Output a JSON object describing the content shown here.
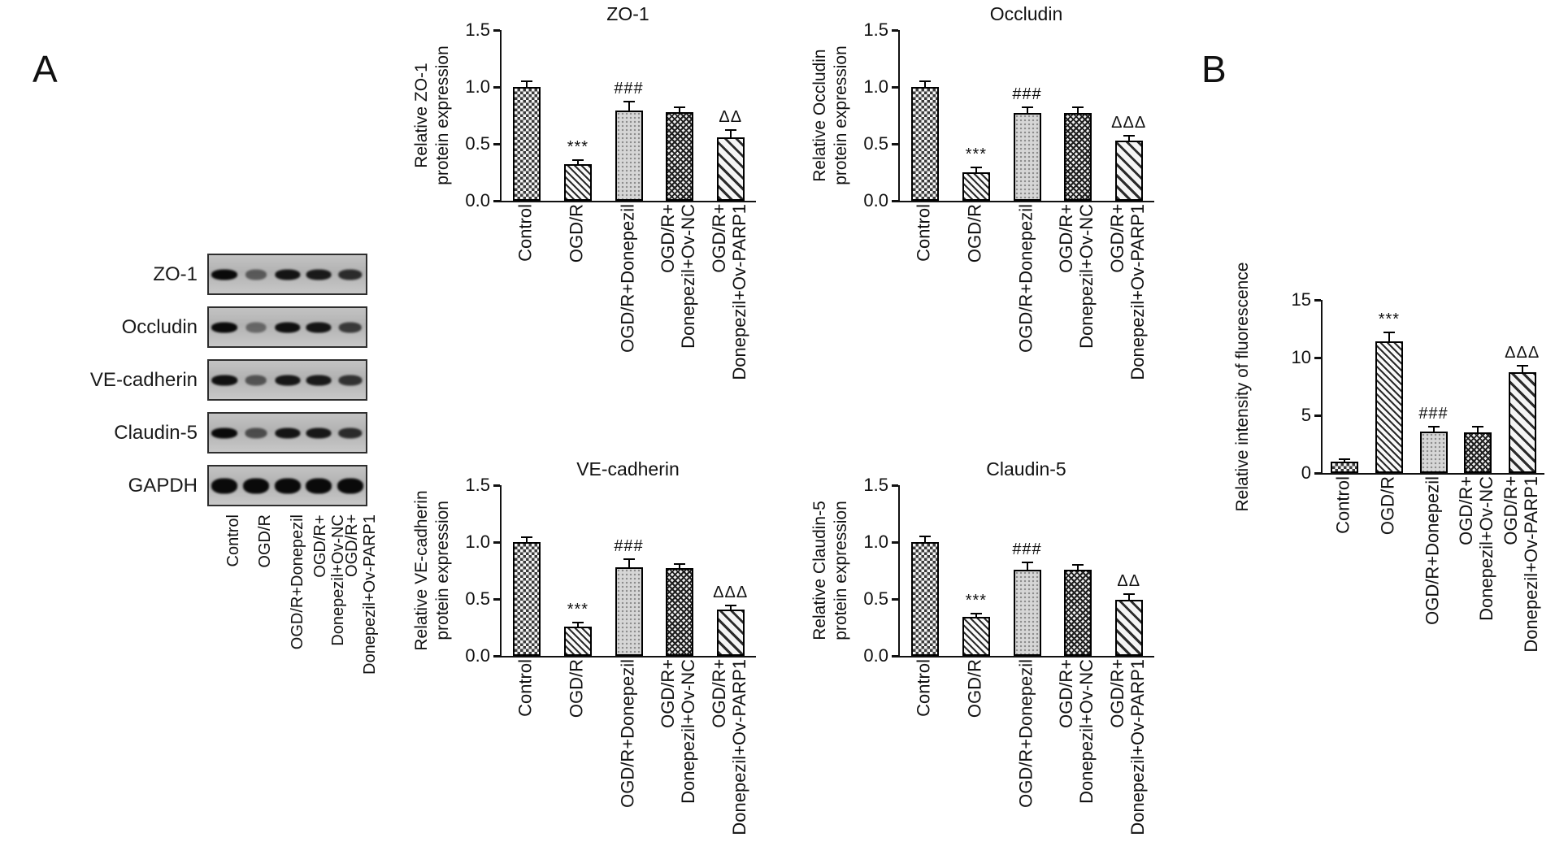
{
  "figure": {
    "panel_a_label": "A",
    "panel_b_label": "B",
    "background": "#ffffff",
    "ink": "#111111"
  },
  "bar_patterns": [
    {
      "category": "Control",
      "pattern": "checkerboard"
    },
    {
      "category": "OGD/R",
      "pattern": "fine-diagonal-hatch"
    },
    {
      "category": "OGD/R+Donepezil",
      "pattern": "light-gray-dotted"
    },
    {
      "category": "OGD/R+Donepezil+Ov-NC",
      "pattern": "dense-crosshatch"
    },
    {
      "category": "OGD/R+Donepezil+Ov-PARP1",
      "pattern": "diagonal-hatch"
    }
  ],
  "blot": {
    "rows": [
      {
        "label": "ZO-1",
        "band_intensities": [
          1.0,
          0.4,
          0.92,
          0.88,
          0.75
        ]
      },
      {
        "label": "Occludin",
        "band_intensities": [
          1.0,
          0.3,
          0.95,
          0.92,
          0.65
        ]
      },
      {
        "label": "VE-cadherin",
        "band_intensities": [
          0.95,
          0.45,
          0.9,
          0.88,
          0.7
        ]
      },
      {
        "label": "Claudin-5",
        "band_intensities": [
          1.0,
          0.5,
          0.92,
          0.9,
          0.75
        ]
      },
      {
        "label": "GAPDH",
        "band_intensities": [
          1.0,
          1.0,
          1.0,
          1.0,
          1.0
        ]
      }
    ],
    "lane_labels": [
      [
        "Control"
      ],
      [
        "OGD/R"
      ],
      [
        "OGD/R+Donepezil"
      ],
      [
        "OGD/R+",
        "Donepezil+Ov-NC"
      ],
      [
        "OGD/R+",
        "Donepezil+Ov-PARP1"
      ]
    ]
  },
  "chart_data": [
    {
      "id": "zo1",
      "panel": "A",
      "type": "bar",
      "title": "ZO-1",
      "ylabel_lines": [
        "Relative ZO-1",
        "protein expression"
      ],
      "ylim": [
        0,
        1.5
      ],
      "yticks": [
        "0.0",
        "0.5",
        "1.0",
        "1.5"
      ],
      "categories": [
        [
          "Control"
        ],
        [
          "OGD/R"
        ],
        [
          "OGD/R+Donepezil"
        ],
        [
          "OGD/R+",
          "Donepezil+Ov-NC"
        ],
        [
          "OGD/R+",
          "Donepezil+Ov-PARP1"
        ]
      ],
      "values": [
        1.0,
        0.32,
        0.79,
        0.78,
        0.56
      ],
      "errors": [
        0.05,
        0.04,
        0.08,
        0.04,
        0.06
      ],
      "annotations": [
        "",
        "***",
        "###",
        "",
        "ΔΔ"
      ]
    },
    {
      "id": "occludin",
      "panel": "A",
      "type": "bar",
      "title": "Occludin",
      "ylabel_lines": [
        "Relative Occludin",
        "protein expression"
      ],
      "ylim": [
        0,
        1.5
      ],
      "yticks": [
        "0.0",
        "0.5",
        "1.0",
        "1.5"
      ],
      "categories": [
        [
          "Control"
        ],
        [
          "OGD/R"
        ],
        [
          "OGD/R+Donepezil"
        ],
        [
          "OGD/R+",
          "Donepezil+Ov-NC"
        ],
        [
          "OGD/R+",
          "Donepezil+Ov-PARP1"
        ]
      ],
      "values": [
        1.0,
        0.25,
        0.77,
        0.77,
        0.53
      ],
      "errors": [
        0.05,
        0.04,
        0.05,
        0.05,
        0.04
      ],
      "annotations": [
        "",
        "***",
        "###",
        "",
        "ΔΔΔ"
      ]
    },
    {
      "id": "ve-cadherin",
      "panel": "A",
      "type": "bar",
      "title": "VE-cadherin",
      "ylabel_lines": [
        "Relative VE-cadherin",
        "protein expression"
      ],
      "ylim": [
        0,
        1.5
      ],
      "yticks": [
        "0.0",
        "0.5",
        "1.0",
        "1.5"
      ],
      "categories": [
        [
          "Control"
        ],
        [
          "OGD/R"
        ],
        [
          "OGD/R+Donepezil"
        ],
        [
          "OGD/R+",
          "Donepezil+Ov-NC"
        ],
        [
          "OGD/R+",
          "Donepezil+Ov-PARP1"
        ]
      ],
      "values": [
        1.0,
        0.26,
        0.78,
        0.77,
        0.41
      ],
      "errors": [
        0.04,
        0.03,
        0.07,
        0.04,
        0.03
      ],
      "annotations": [
        "",
        "***",
        "###",
        "",
        "ΔΔΔ"
      ]
    },
    {
      "id": "claudin5",
      "panel": "A",
      "type": "bar",
      "title": "Claudin-5",
      "ylabel_lines": [
        "Relative Claudin-5",
        "protein expression"
      ],
      "ylim": [
        0,
        1.5
      ],
      "yticks": [
        "0.0",
        "0.5",
        "1.0",
        "1.5"
      ],
      "categories": [
        [
          "Control"
        ],
        [
          "OGD/R"
        ],
        [
          "OGD/R+Donepezil"
        ],
        [
          "OGD/R+",
          "Donepezil+Ov-NC"
        ],
        [
          "OGD/R+",
          "Donepezil+Ov-PARP1"
        ]
      ],
      "values": [
        1.0,
        0.34,
        0.76,
        0.76,
        0.49
      ],
      "errors": [
        0.05,
        0.03,
        0.06,
        0.04,
        0.05
      ],
      "annotations": [
        "",
        "***",
        "###",
        "",
        "ΔΔ"
      ]
    },
    {
      "id": "fluorescence",
      "panel": "B",
      "type": "bar",
      "title": "",
      "ylabel_lines": [
        "Relative intensity of fluorescence"
      ],
      "ylim": [
        0,
        15
      ],
      "yticks": [
        "0",
        "5",
        "10",
        "15"
      ],
      "categories": [
        [
          "Control"
        ],
        [
          "OGD/R"
        ],
        [
          "OGD/R+Donepezil"
        ],
        [
          "OGD/R+",
          "Donepezil+Ov-NC"
        ],
        [
          "OGD/R+",
          "Donepezil+Ov-PARP1"
        ]
      ],
      "values": [
        1.0,
        11.4,
        3.6,
        3.5,
        8.7
      ],
      "errors": [
        0.2,
        0.8,
        0.4,
        0.5,
        0.6
      ],
      "annotations": [
        "",
        "***",
        "###",
        "",
        "ΔΔΔ"
      ]
    }
  ]
}
